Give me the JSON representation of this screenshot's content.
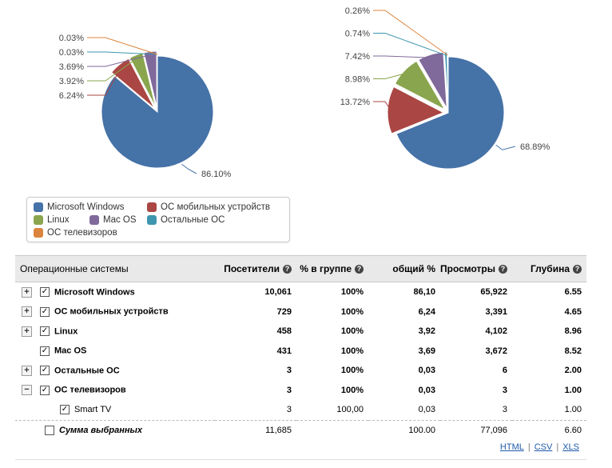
{
  "chart_data": [
    {
      "type": "pie",
      "title": "",
      "categories": [
        "Microsoft Windows",
        "ОС мобильных устройств",
        "Linux",
        "Mac OS",
        "Остальные ОС",
        "ОС телевизоров"
      ],
      "values": [
        86.1,
        6.24,
        3.92,
        3.69,
        0.03,
        0.03
      ],
      "labels": [
        "86.10%",
        "6.24%",
        "3.92%",
        "3.69%",
        "0.03%",
        "0.03%"
      ],
      "colors": [
        "#4572a7",
        "#aa4643",
        "#89a54e",
        "#80699b",
        "#3d96ae",
        "#db843d"
      ]
    },
    {
      "type": "pie",
      "title": "",
      "categories": [
        "Microsoft Windows",
        "ОС мобильных устройств",
        "Linux",
        "Mac OS",
        "Остальные ОС",
        "ОС телевизоров"
      ],
      "values": [
        68.89,
        13.72,
        8.98,
        7.42,
        0.74,
        0.26
      ],
      "labels": [
        "68.89%",
        "13.72%",
        "8.98%",
        "7.42%",
        "0.74%",
        "0.26%"
      ],
      "colors": [
        "#4572a7",
        "#aa4643",
        "#89a54e",
        "#80699b",
        "#3d96ae",
        "#db843d"
      ]
    }
  ],
  "legend": [
    {
      "label": "Microsoft Windows",
      "color": "#4572a7"
    },
    {
      "label": "ОС мобильных устройств",
      "color": "#aa4643"
    },
    {
      "label": "Linux",
      "color": "#89a54e"
    },
    {
      "label": "Mac OS",
      "color": "#80699b"
    },
    {
      "label": "Остальные ОС",
      "color": "#3d96ae"
    },
    {
      "label": "ОС телевизоров",
      "color": "#db843d"
    }
  ],
  "table": {
    "headers": {
      "name": "Операционные системы",
      "visitors": "Посетители",
      "group_pct": "% в группе",
      "total_pct": "общий %",
      "views": "Просмотры",
      "depth": "Глубина"
    },
    "rows": [
      {
        "name": "Microsoft Windows",
        "visitors": "10,061",
        "group_pct": "100%",
        "total_pct": "86,10",
        "views": "65,922",
        "depth": "6.55",
        "expander": "+"
      },
      {
        "name": "ОС мобильных устройств",
        "visitors": "729",
        "group_pct": "100%",
        "total_pct": "6,24",
        "views": "3,391",
        "depth": "4.65",
        "expander": "+"
      },
      {
        "name": "Linux",
        "visitors": "458",
        "group_pct": "100%",
        "total_pct": "3,92",
        "views": "4,102",
        "depth": "8.96",
        "expander": "+"
      },
      {
        "name": "Mac OS",
        "visitors": "431",
        "group_pct": "100%",
        "total_pct": "3,69",
        "views": "3,672",
        "depth": "8.52",
        "expander": ""
      },
      {
        "name": "Остальные ОС",
        "visitors": "3",
        "group_pct": "100%",
        "total_pct": "0,03",
        "views": "6",
        "depth": "2.00",
        "expander": "+"
      },
      {
        "name": "ОС телевизоров",
        "visitors": "3",
        "group_pct": "100%",
        "total_pct": "0,03",
        "views": "3",
        "depth": "1.00",
        "expander": "−"
      }
    ],
    "subrow": {
      "name": "Smart TV",
      "visitors": "3",
      "group_pct": "100,00",
      "total_pct": "0,03",
      "views": "3",
      "depth": "1.00"
    },
    "sum": {
      "name": "Сумма выбранных",
      "visitors": "11,685",
      "group_pct": "",
      "total_pct": "100.00",
      "views": "77,096",
      "depth": "6.60"
    },
    "check_mark": "✓",
    "help_glyph": "?"
  },
  "export": {
    "html": "HTML",
    "csv": "CSV",
    "xls": "XLS",
    "sep": "|"
  }
}
